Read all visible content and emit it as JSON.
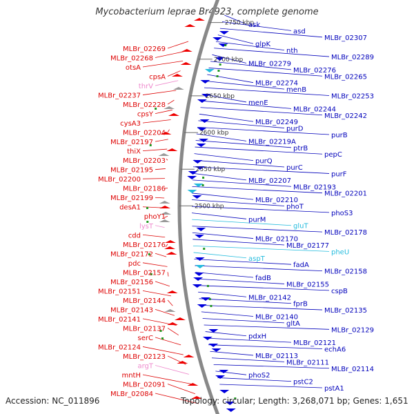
{
  "title": "Mycobacterium leprae Br4923, complete genome",
  "footer": {
    "accession": "Accession: NC_011896",
    "summary": "Topology: circular; Length: 3,268,071 bp; Genes: 1,651"
  },
  "colors": {
    "left_label": "#dd0000",
    "left_label_pseudo": "#ee88cc",
    "right_label": "#0000bb",
    "right_label_rna": "#22bbdd",
    "backbone": "#888888",
    "forward_gene": "#ee0000",
    "reverse_gene": "#0000dd"
  },
  "kbp_marks": [
    {
      "label": "2750 kbp",
      "pos": 2750
    },
    {
      "label": "2700 kbp",
      "pos": 2700
    },
    {
      "label": "2650 kbp",
      "pos": 2650
    },
    {
      "label": "2600 kbp",
      "pos": 2600
    },
    {
      "label": "2550 kbp",
      "pos": 2550
    },
    {
      "label": "2500 kbp",
      "pos": 2500
    }
  ],
  "left_labels": [
    {
      "text": "MLBr_02269",
      "kind": "gene"
    },
    {
      "text": "MLBr_02268",
      "kind": "gene"
    },
    {
      "text": "otsA",
      "kind": "gene"
    },
    {
      "text": "cpsA",
      "kind": "gene"
    },
    {
      "text": "thrV",
      "kind": "rna"
    },
    {
      "text": "MLBr_02237",
      "kind": "gene"
    },
    {
      "text": "MLBr_02228",
      "kind": "gene"
    },
    {
      "text": "cpsY",
      "kind": "gene"
    },
    {
      "text": "cysA3",
      "kind": "gene"
    },
    {
      "text": "MLBr_02204",
      "kind": "gene"
    },
    {
      "text": "MLBr_02197",
      "kind": "gene"
    },
    {
      "text": "thiX",
      "kind": "gene"
    },
    {
      "text": "MLBr_02203",
      "kind": "gene"
    },
    {
      "text": "MLBr_02195",
      "kind": "gene"
    },
    {
      "text": "MLBr_02200",
      "kind": "gene"
    },
    {
      "text": "MLBr_02186",
      "kind": "gene"
    },
    {
      "text": "MLBr_02199",
      "kind": "gene"
    },
    {
      "text": "desA1",
      "kind": "gene"
    },
    {
      "text": "phoY1",
      "kind": "gene"
    },
    {
      "text": "lysT",
      "kind": "rna"
    },
    {
      "text": "cdd",
      "kind": "gene"
    },
    {
      "text": "MLBr_02176",
      "kind": "gene"
    },
    {
      "text": "MLBr_02172",
      "kind": "gene"
    },
    {
      "text": "pdc",
      "kind": "gene"
    },
    {
      "text": "MLBr_02157",
      "kind": "gene"
    },
    {
      "text": "MLBr_02156",
      "kind": "gene"
    },
    {
      "text": "MLBr_02151",
      "kind": "gene"
    },
    {
      "text": "MLBr_02144",
      "kind": "gene"
    },
    {
      "text": "MLBr_02143",
      "kind": "gene"
    },
    {
      "text": "MLBr_02141",
      "kind": "gene"
    },
    {
      "text": "MLBr_02137",
      "kind": "gene"
    },
    {
      "text": "serC",
      "kind": "gene"
    },
    {
      "text": "MLBr_02124",
      "kind": "gene"
    },
    {
      "text": "MLBr_02123",
      "kind": "gene"
    },
    {
      "text": "argT",
      "kind": "rna"
    },
    {
      "text": "mntH",
      "kind": "gene"
    },
    {
      "text": "MLBr_02091",
      "kind": "gene"
    },
    {
      "text": "MLBr_02084",
      "kind": "gene"
    }
  ],
  "right_labels": [
    {
      "text": "ask",
      "kind": "gene"
    },
    {
      "text": "asd",
      "kind": "gene"
    },
    {
      "text": "MLBr_02307",
      "kind": "gene"
    },
    {
      "text": "glpK",
      "kind": "gene"
    },
    {
      "text": "nth",
      "kind": "gene"
    },
    {
      "text": "MLBr_02289",
      "kind": "gene"
    },
    {
      "text": "MLBr_02279",
      "kind": "gene"
    },
    {
      "text": "MLBr_02276",
      "kind": "gene"
    },
    {
      "text": "MLBr_02265",
      "kind": "gene"
    },
    {
      "text": "MLBr_02274",
      "kind": "gene"
    },
    {
      "text": "menB",
      "kind": "gene"
    },
    {
      "text": "MLBr_02253",
      "kind": "gene"
    },
    {
      "text": "menE",
      "kind": "gene"
    },
    {
      "text": "MLBr_02244",
      "kind": "gene"
    },
    {
      "text": "MLBr_02242",
      "kind": "gene"
    },
    {
      "text": "MLBr_02249",
      "kind": "gene"
    },
    {
      "text": "purD",
      "kind": "gene"
    },
    {
      "text": "purB",
      "kind": "gene"
    },
    {
      "text": "MLBr_02219A",
      "kind": "gene"
    },
    {
      "text": "ptrB",
      "kind": "gene"
    },
    {
      "text": "pepC",
      "kind": "gene"
    },
    {
      "text": "purQ",
      "kind": "gene"
    },
    {
      "text": "purC",
      "kind": "gene"
    },
    {
      "text": "purF",
      "kind": "gene"
    },
    {
      "text": "MLBr_02207",
      "kind": "gene"
    },
    {
      "text": "MLBr_02193",
      "kind": "gene"
    },
    {
      "text": "MLBr_02201",
      "kind": "gene"
    },
    {
      "text": "MLBr_02210",
      "kind": "gene"
    },
    {
      "text": "phoT",
      "kind": "gene"
    },
    {
      "text": "phoS3",
      "kind": "gene"
    },
    {
      "text": "purM",
      "kind": "gene"
    },
    {
      "text": "gluT",
      "kind": "rna"
    },
    {
      "text": "MLBr_02178",
      "kind": "gene"
    },
    {
      "text": "MLBr_02170",
      "kind": "gene"
    },
    {
      "text": "MLBr_02177",
      "kind": "gene"
    },
    {
      "text": "pheU",
      "kind": "rna"
    },
    {
      "text": "aspT",
      "kind": "rna"
    },
    {
      "text": "fadA",
      "kind": "gene"
    },
    {
      "text": "MLBr_02158",
      "kind": "gene"
    },
    {
      "text": "fadB",
      "kind": "gene"
    },
    {
      "text": "MLBr_02155",
      "kind": "gene"
    },
    {
      "text": "cspB",
      "kind": "gene"
    },
    {
      "text": "MLBr_02142",
      "kind": "gene"
    },
    {
      "text": "fprB",
      "kind": "gene"
    },
    {
      "text": "MLBr_02135",
      "kind": "gene"
    },
    {
      "text": "MLBr_02140",
      "kind": "gene"
    },
    {
      "text": "gltA",
      "kind": "gene"
    },
    {
      "text": "MLBr_02129",
      "kind": "gene"
    },
    {
      "text": "pdxH",
      "kind": "gene"
    },
    {
      "text": "MLBr_02121",
      "kind": "gene"
    },
    {
      "text": "echA6",
      "kind": "gene"
    },
    {
      "text": "MLBr_02113",
      "kind": "gene"
    },
    {
      "text": "MLBr_02111",
      "kind": "gene"
    },
    {
      "text": "MLBr_02114",
      "kind": "gene"
    },
    {
      "text": "phoS2",
      "kind": "gene"
    },
    {
      "text": "pstC2",
      "kind": "gene"
    },
    {
      "text": "pstA1",
      "kind": "gene"
    }
  ]
}
